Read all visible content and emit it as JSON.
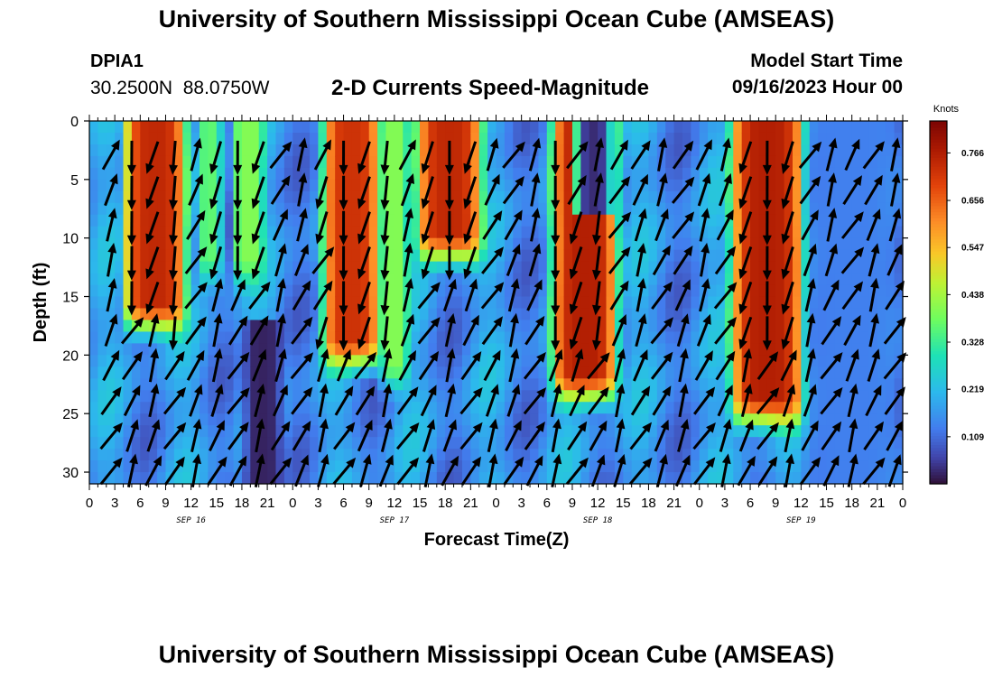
{
  "header": {
    "title": "University of Southern Mississippi Ocean Cube (AMSEAS)",
    "station_id": "DPIA1",
    "station_coords": "30.2500N  88.0750W",
    "subtitle": "2-D Currents Speed-Magnitude",
    "model_start_label": "Model Start Time",
    "model_start_value": "09/16/2023 Hour 00"
  },
  "footer": {
    "title_repeat": "University of Southern Mississippi Ocean Cube (AMSEAS)"
  },
  "chart_data": {
    "type": "heatmap",
    "title": "2-D Currents Speed-Magnitude",
    "xlabel": "Forecast Time(Z)",
    "ylabel": "Depth (ft)",
    "x_tick_labels": [
      "0",
      "3",
      "6",
      "9",
      "12",
      "15",
      "18",
      "21",
      "0",
      "3",
      "6",
      "9",
      "12",
      "15",
      "18",
      "21",
      "0",
      "3",
      "6",
      "9",
      "12",
      "15",
      "18",
      "21",
      "0",
      "3",
      "6",
      "9",
      "12",
      "15",
      "18",
      "21",
      "0"
    ],
    "date_labels": [
      "SEP 16",
      "SEP 17",
      "SEP 18",
      "SEP 19"
    ],
    "xlim_hours": [
      0,
      96
    ],
    "y_ticks": [
      0,
      5,
      10,
      15,
      20,
      25,
      30
    ],
    "ylim_ft": [
      0,
      31
    ],
    "colorbar": {
      "unit": "Knots",
      "ticks": [
        0.109,
        0.219,
        0.328,
        0.438,
        0.547,
        0.656,
        0.766
      ],
      "range": [
        0,
        0.84
      ]
    },
    "high_speed_bands": [
      {
        "start_h": 4.5,
        "end_h": 11,
        "max_depth_ft": 16,
        "speed_kn": 0.74
      },
      {
        "start_h": 13.5,
        "end_h": 15,
        "max_depth_ft": 12,
        "speed_kn": 0.36
      },
      {
        "start_h": 17.5,
        "end_h": 20,
        "max_depth_ft": 12,
        "speed_kn": 0.4
      },
      {
        "start_h": 28,
        "end_h": 34,
        "max_depth_ft": 19,
        "speed_kn": 0.72
      },
      {
        "start_h": 35,
        "end_h": 37,
        "max_depth_ft": 21,
        "speed_kn": 0.4
      },
      {
        "start_h": 39,
        "end_h": 46,
        "max_depth_ft": 10,
        "speed_kn": 0.74
      },
      {
        "start_h": 55,
        "end_h": 62,
        "max_depth_ft": 22,
        "speed_kn": 0.76
      },
      {
        "start_h": 76,
        "end_h": 84,
        "max_depth_ft": 24,
        "speed_kn": 0.76
      }
    ],
    "low_speed_bands": [
      {
        "start_h": 18,
        "end_h": 23,
        "min_depth_ft": 17,
        "speed_kn": 0.02
      },
      {
        "start_h": 57,
        "end_h": 62,
        "min_depth_ft": 0,
        "max_depth_ft": 8,
        "speed_kn": 0.03
      },
      {
        "start_h": 84,
        "end_h": 96,
        "min_depth_ft": 0,
        "speed_kn": 0.13
      }
    ],
    "vector_rows_ft": [
      3,
      6,
      9,
      12,
      15,
      18,
      21,
      24,
      27,
      30
    ],
    "vector_interval_h": 2.5,
    "vector_note": "velocity arrows: shallow layers flow mostly southward during ebb bands, deeper layers flow north-northeast"
  }
}
